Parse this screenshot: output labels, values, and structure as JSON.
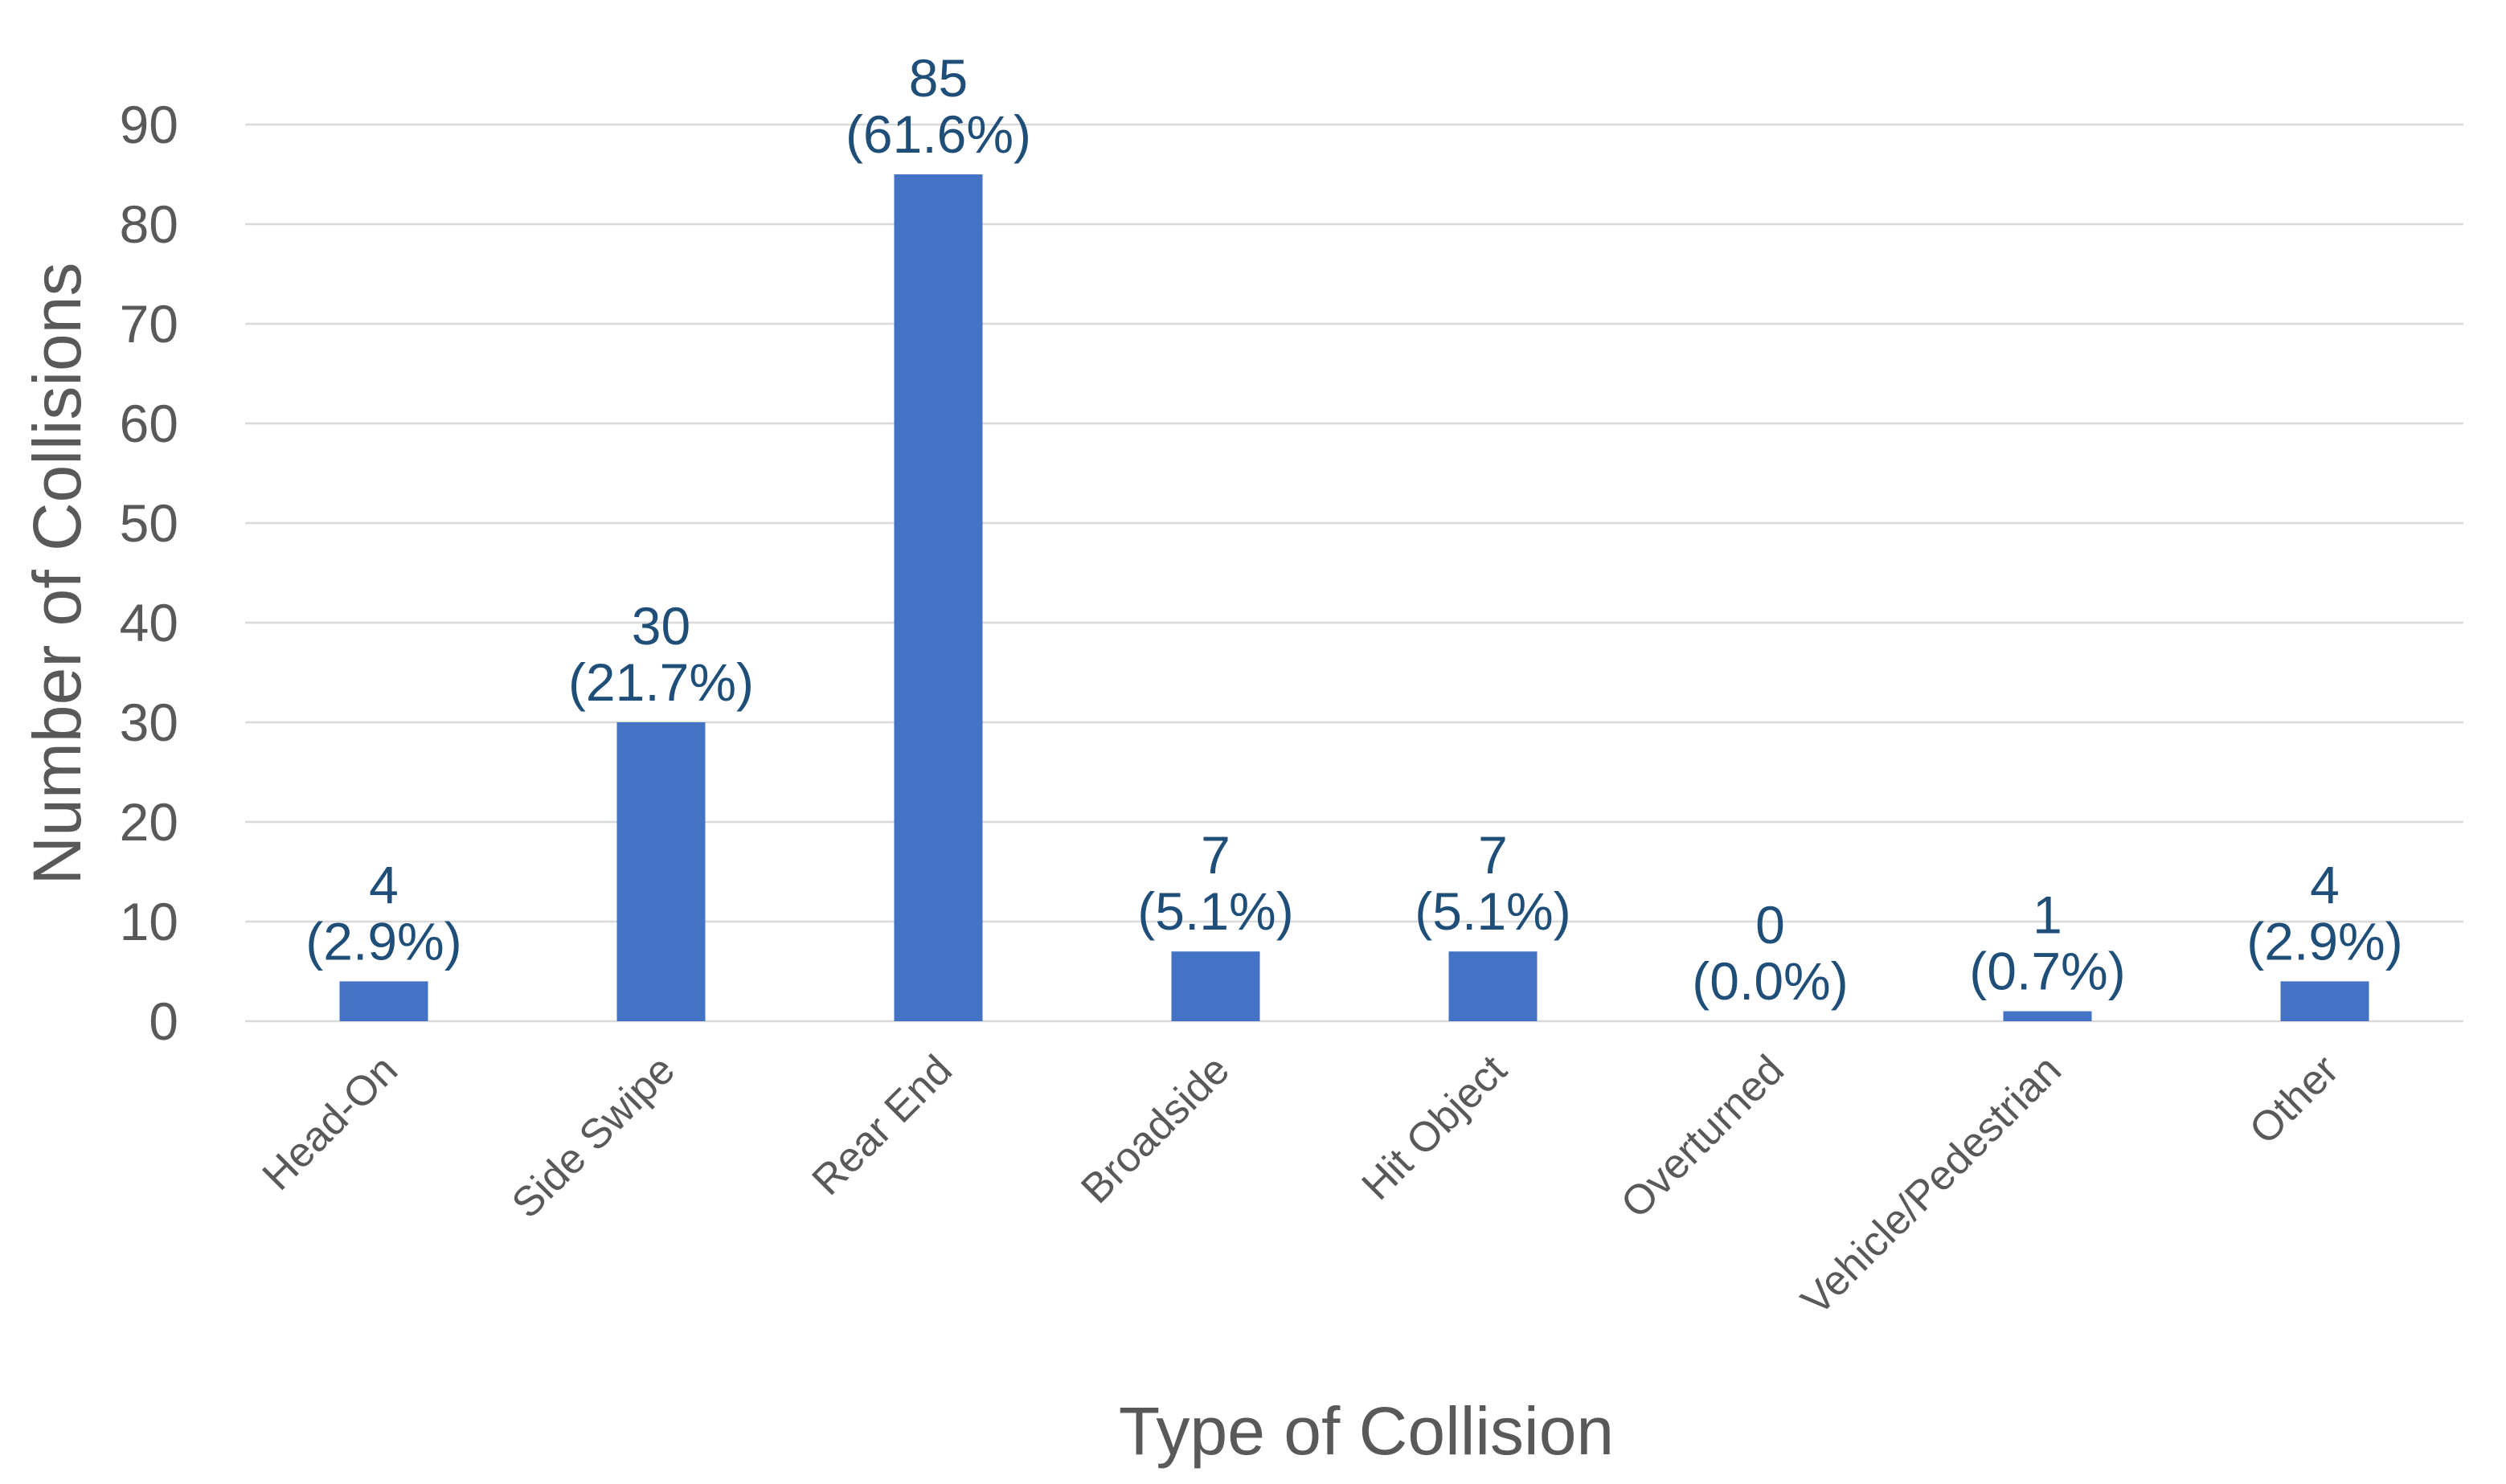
{
  "chart_data": {
    "type": "bar",
    "title": "",
    "xlabel": "Type of Collision",
    "ylabel": "Number of Collisions",
    "ylim": [
      0,
      90
    ],
    "yticks": [
      0,
      10,
      20,
      30,
      40,
      50,
      60,
      70,
      80,
      90
    ],
    "grid": true,
    "bar_color": "#4472c4",
    "label_color": "#1f4e79",
    "categories": [
      "Head-On",
      "Side Swipe",
      "Rear End",
      "Broadside",
      "Hit Object",
      "Overturned",
      "Vehicle/Pedestrian",
      "Other"
    ],
    "values": [
      4,
      30,
      85,
      7,
      7,
      0,
      1,
      4
    ],
    "value_labels": [
      "4",
      "30",
      "85",
      "7",
      "7",
      "0",
      "1",
      "4"
    ],
    "percent_labels": [
      "(2.9%)",
      "(21.7%)",
      "(61.6%)",
      "(5.1%)",
      "(5.1%)",
      "(0.0%)",
      "(0.7%)",
      "(2.9%)"
    ]
  }
}
